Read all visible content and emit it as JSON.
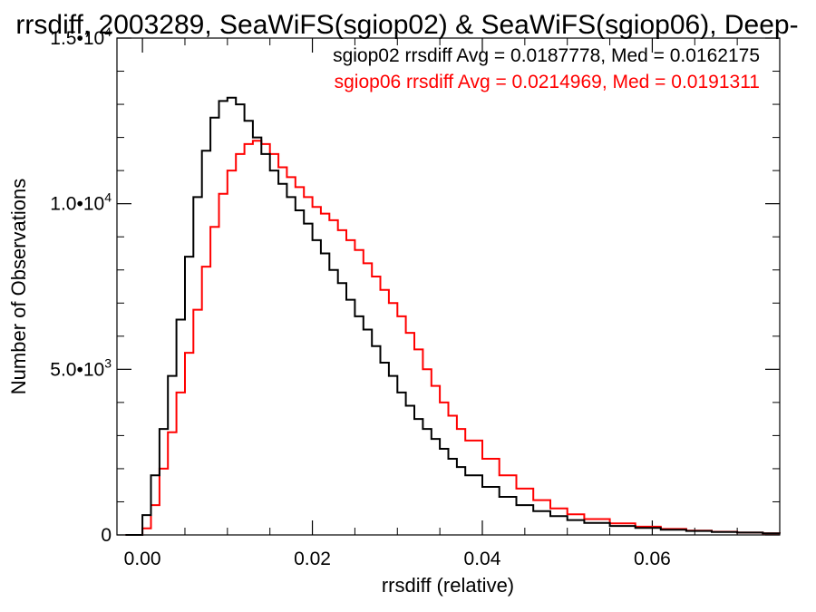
{
  "chart_data": {
    "type": "histogram-step",
    "title": "rrsdiff, 2003289, SeaWiFS(sgiop02) & SeaWiFS(sgiop06), Deep-",
    "xlabel": "rrsdiff (relative)",
    "ylabel": "Number of Observations",
    "xlim": [
      -0.003,
      0.075
    ],
    "ylim": [
      0,
      15000
    ],
    "x_ticks": [
      {
        "value": 0.0,
        "label": "0.00"
      },
      {
        "value": 0.02,
        "label": "0.02"
      },
      {
        "value": 0.04,
        "label": "0.04"
      },
      {
        "value": 0.06,
        "label": "0.06"
      }
    ],
    "y_ticks": [
      {
        "value": 0,
        "mantissa": "0",
        "exponent": ""
      },
      {
        "value": 5000,
        "mantissa": "5.0•10",
        "exponent": "3"
      },
      {
        "value": 10000,
        "mantissa": "1.0•10",
        "exponent": "4"
      },
      {
        "value": 15000,
        "mantissa": "1.5•10",
        "exponent": "4"
      }
    ],
    "series": [
      {
        "name": "sgiop02",
        "color": "#000000",
        "legend": "sgiop02 rrsdiff Avg = 0.0187778, Med = 0.0162175",
        "x": [
          -0.002,
          0.0,
          0.001,
          0.002,
          0.003,
          0.004,
          0.005,
          0.006,
          0.007,
          0.008,
          0.009,
          0.01,
          0.011,
          0.012,
          0.013,
          0.014,
          0.015,
          0.016,
          0.017,
          0.018,
          0.019,
          0.02,
          0.021,
          0.022,
          0.023,
          0.024,
          0.025,
          0.026,
          0.027,
          0.028,
          0.029,
          0.03,
          0.031,
          0.032,
          0.033,
          0.034,
          0.035,
          0.036,
          0.037,
          0.038,
          0.04,
          0.042,
          0.044,
          0.046,
          0.048,
          0.05,
          0.052,
          0.055,
          0.058,
          0.061,
          0.064,
          0.067,
          0.07,
          0.073,
          0.075
        ],
        "values": [
          0,
          600,
          1800,
          3200,
          4800,
          6500,
          8400,
          10200,
          11600,
          12600,
          13100,
          13200,
          13000,
          12500,
          12000,
          11500,
          11000,
          10600,
          10200,
          9800,
          9400,
          8900,
          8500,
          8000,
          7600,
          7100,
          6600,
          6200,
          5700,
          5200,
          4800,
          4300,
          3900,
          3500,
          3200,
          2900,
          2600,
          2300,
          2050,
          1800,
          1450,
          1150,
          900,
          720,
          570,
          450,
          360,
          270,
          210,
          160,
          120,
          90,
          70,
          50,
          40
        ]
      },
      {
        "name": "sgiop06",
        "color": "#ff0000",
        "legend": "sgiop06 rrsdiff Avg = 0.0214969, Med = 0.0191311",
        "x": [
          -0.002,
          0.0,
          0.001,
          0.002,
          0.003,
          0.004,
          0.005,
          0.006,
          0.007,
          0.008,
          0.009,
          0.01,
          0.011,
          0.012,
          0.013,
          0.014,
          0.015,
          0.016,
          0.017,
          0.018,
          0.019,
          0.02,
          0.021,
          0.022,
          0.023,
          0.024,
          0.025,
          0.026,
          0.027,
          0.028,
          0.029,
          0.03,
          0.031,
          0.032,
          0.033,
          0.034,
          0.035,
          0.036,
          0.037,
          0.038,
          0.04,
          0.042,
          0.044,
          0.046,
          0.048,
          0.05,
          0.052,
          0.055,
          0.058,
          0.061,
          0.064,
          0.067,
          0.07,
          0.073,
          0.075
        ],
        "values": [
          0,
          200,
          900,
          2000,
          3100,
          4300,
          5500,
          6800,
          8100,
          9300,
          10300,
          11000,
          11500,
          11800,
          11900,
          11800,
          11500,
          11100,
          10800,
          10500,
          10200,
          9900,
          9700,
          9500,
          9200,
          8900,
          8600,
          8200,
          7800,
          7400,
          7000,
          6600,
          6100,
          5600,
          5000,
          4500,
          4000,
          3600,
          3200,
          2850,
          2300,
          1800,
          1400,
          1050,
          800,
          620,
          480,
          350,
          250,
          180,
          130,
          95,
          70,
          50,
          40
        ]
      }
    ],
    "grid": false,
    "legend_position": "top-right"
  }
}
